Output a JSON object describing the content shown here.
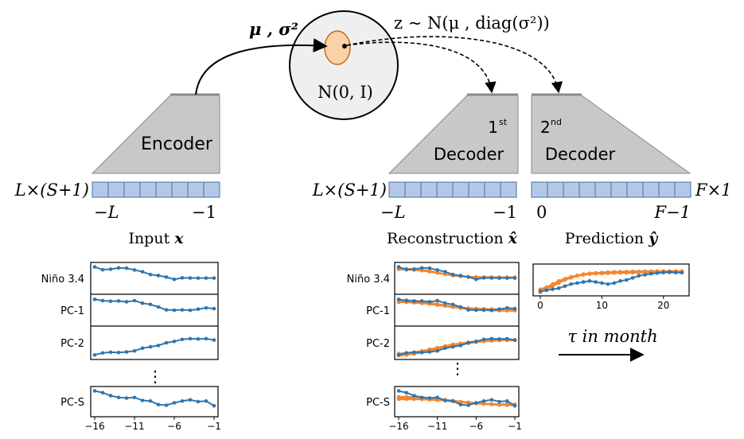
{
  "colors": {
    "blue": "#2e76b0",
    "orange": "#f4862f",
    "box_fill": "#b4c7e7",
    "box_stroke": "#4a6fa5",
    "trapezoid_fill": "#c8c8c8",
    "latent_fill": "#fbd2a8",
    "latent_stroke": "#c46a16"
  },
  "labels": {
    "mu_sigma": "μ , σ²",
    "z_sample": "z ~ N(μ , diag(σ²))",
    "prior": "N(0, I)",
    "encoder": "Encoder",
    "decoder1_sup": "st",
    "decoder1_num": "1",
    "decoder1": "Decoder",
    "decoder2_num": "2",
    "decoder2_sup": "nd",
    "decoder2": "Decoder",
    "input_dim": "L×(S+1)",
    "recon_dim": "L×(S+1)",
    "pred_dim": "F×1",
    "input_left": "−L",
    "input_right": "−1",
    "recon_left": "−L",
    "recon_right": "−1",
    "pred_left": "0",
    "pred_right": "F−1",
    "input_caption": "Input",
    "input_var": "x",
    "recon_caption": "Reconstruction",
    "recon_var": "x̂",
    "pred_caption": "Prediction",
    "pred_var": "ŷ",
    "tau_label": "τ  in month",
    "vdots": "⋮"
  },
  "chart_data": [
    {
      "type": "line",
      "panel": "input",
      "rows": [
        "Niño 3.4",
        "PC-1",
        "PC-2",
        "PC-S"
      ],
      "x": [
        -16,
        -15,
        -14,
        -13,
        -12,
        -11,
        -10,
        -9,
        -8,
        -7,
        -6,
        -5,
        -4,
        -3,
        -2,
        -1
      ],
      "xticks": [
        "−16",
        "−11",
        "−6",
        "−1"
      ],
      "series": [
        {
          "row": "Niño 3.4",
          "values": [
            0.9,
            0.68,
            0.72,
            0.82,
            0.8,
            0.66,
            0.52,
            0.3,
            0.22,
            0.1,
            -0.08,
            0.04,
            0.03,
            0.02,
            0.02,
            0.02
          ]
        },
        {
          "row": "PC-1",
          "values": [
            0.85,
            0.75,
            0.7,
            0.72,
            0.66,
            0.75,
            0.55,
            0.45,
            0.25,
            0.02,
            0.0,
            0.02,
            -0.01,
            0.08,
            0.18,
            0.12
          ]
        },
        {
          "row": "PC-2",
          "values": [
            -0.9,
            -0.75,
            -0.7,
            -0.72,
            -0.68,
            -0.6,
            -0.4,
            -0.3,
            -0.2,
            0.0,
            0.1,
            0.25,
            0.3,
            0.28,
            0.3,
            0.2
          ]
        },
        {
          "row": "PC-S",
          "values": [
            0.9,
            0.75,
            0.5,
            0.35,
            0.3,
            0.35,
            0.1,
            0.05,
            -0.25,
            -0.3,
            -0.1,
            0.05,
            0.15,
            0.0,
            0.05,
            -0.35
          ]
        }
      ]
    },
    {
      "type": "line",
      "panel": "reconstruction",
      "rows": [
        "Niño 3.4",
        "PC-1",
        "PC-2",
        "PC-S"
      ],
      "x": [
        -16,
        -15,
        -14,
        -13,
        -12,
        -11,
        -10,
        -9,
        -8,
        -7,
        -6,
        -5,
        -4,
        -3,
        -2,
        -1
      ],
      "xticks": [
        "−16",
        "−11",
        "−6",
        "−1"
      ],
      "series": [
        {
          "row": "Niño 3.4",
          "kind": "input",
          "values": [
            0.9,
            0.68,
            0.72,
            0.82,
            0.8,
            0.66,
            0.52,
            0.3,
            0.22,
            0.1,
            -0.08,
            0.04,
            0.03,
            0.02,
            0.02,
            0.02
          ]
        },
        {
          "row": "Niño 3.4",
          "kind": "reconstruction",
          "values": [
            0.78,
            0.76,
            0.72,
            0.66,
            0.58,
            0.46,
            0.34,
            0.24,
            0.16,
            0.12,
            0.1,
            0.1,
            0.09,
            0.09,
            0.09,
            0.09
          ]
        },
        {
          "row": "Niño 3.4",
          "kind": "reconstruction",
          "values": [
            0.7,
            0.7,
            0.66,
            0.6,
            0.52,
            0.42,
            0.32,
            0.22,
            0.16,
            0.12,
            0.1,
            0.08,
            0.08,
            0.08,
            0.08,
            0.08
          ]
        },
        {
          "row": "PC-1",
          "kind": "input",
          "values": [
            0.85,
            0.75,
            0.7,
            0.72,
            0.66,
            0.75,
            0.55,
            0.45,
            0.25,
            0.02,
            0.0,
            0.02,
            -0.01,
            0.08,
            0.18,
            0.12
          ]
        },
        {
          "row": "PC-1",
          "kind": "reconstruction",
          "values": [
            0.8,
            0.78,
            0.74,
            0.68,
            0.58,
            0.48,
            0.38,
            0.3,
            0.22,
            0.16,
            0.12,
            0.1,
            0.08,
            0.08,
            0.07,
            0.07
          ]
        },
        {
          "row": "PC-1",
          "kind": "reconstruction",
          "values": [
            0.72,
            0.7,
            0.66,
            0.6,
            0.52,
            0.42,
            0.34,
            0.26,
            0.2,
            0.14,
            0.1,
            0.06,
            0.04,
            0.03,
            0.02,
            0.02
          ]
        },
        {
          "row": "PC-1",
          "kind": "reconstruction",
          "values": [
            0.62,
            0.62,
            0.58,
            0.54,
            0.48,
            0.4,
            0.32,
            0.24,
            0.16,
            0.1,
            0.04,
            0.0,
            -0.02,
            -0.04,
            -0.05,
            -0.05
          ]
        },
        {
          "row": "PC-2",
          "kind": "input",
          "values": [
            -0.9,
            -0.75,
            -0.7,
            -0.72,
            -0.68,
            -0.6,
            -0.4,
            -0.3,
            -0.2,
            0.0,
            0.1,
            0.25,
            0.3,
            0.28,
            0.3,
            0.2
          ]
        },
        {
          "row": "PC-2",
          "kind": "reconstruction",
          "values": [
            -0.95,
            -0.9,
            -0.82,
            -0.72,
            -0.6,
            -0.46,
            -0.34,
            -0.22,
            -0.12,
            -0.04,
            0.04,
            0.1,
            0.14,
            0.17,
            0.18,
            0.18
          ]
        },
        {
          "row": "PC-2",
          "kind": "reconstruction",
          "values": [
            -0.88,
            -0.84,
            -0.76,
            -0.66,
            -0.54,
            -0.4,
            -0.28,
            -0.16,
            -0.06,
            0.02,
            0.08,
            0.12,
            0.16,
            0.18,
            0.2,
            0.2
          ]
        },
        {
          "row": "PC-2",
          "kind": "reconstruction",
          "values": [
            -0.8,
            -0.76,
            -0.7,
            -0.6,
            -0.48,
            -0.36,
            -0.24,
            -0.12,
            -0.04,
            0.04,
            0.1,
            0.14,
            0.18,
            0.2,
            0.22,
            0.22
          ]
        },
        {
          "row": "PC-S",
          "kind": "input",
          "values": [
            0.9,
            0.75,
            0.5,
            0.35,
            0.3,
            0.35,
            0.1,
            0.05,
            -0.25,
            -0.3,
            -0.1,
            0.05,
            0.15,
            0.0,
            0.05,
            -0.35
          ]
        },
        {
          "row": "PC-S",
          "kind": "reconstruction",
          "values": [
            0.4,
            0.4,
            0.38,
            0.34,
            0.3,
            0.24,
            0.16,
            0.08,
            0.0,
            -0.08,
            -0.14,
            -0.18,
            -0.2,
            -0.22,
            -0.22,
            -0.22
          ]
        },
        {
          "row": "PC-S",
          "kind": "reconstruction",
          "values": [
            0.3,
            0.3,
            0.28,
            0.26,
            0.22,
            0.18,
            0.12,
            0.06,
            0.0,
            -0.06,
            -0.12,
            -0.16,
            -0.2,
            -0.24,
            -0.26,
            -0.26
          ]
        },
        {
          "row": "PC-S",
          "kind": "reconstruction",
          "values": [
            0.2,
            0.2,
            0.2,
            0.18,
            0.16,
            0.12,
            0.08,
            0.02,
            -0.04,
            -0.1,
            -0.16,
            -0.2,
            -0.24,
            -0.28,
            -0.3,
            -0.3
          ]
        }
      ]
    },
    {
      "type": "line",
      "panel": "prediction",
      "rows": [
        "Niño 3.4"
      ],
      "x": [
        0,
        1,
        2,
        3,
        4,
        5,
        6,
        7,
        8,
        9,
        10,
        11,
        12,
        13,
        14,
        15,
        16,
        17,
        18,
        19,
        20,
        21,
        22,
        23
      ],
      "xticks": [
        "0",
        "10",
        "20"
      ],
      "series": [
        {
          "kind": "truth",
          "values": [
            -0.55,
            -0.5,
            -0.45,
            -0.4,
            -0.3,
            -0.2,
            -0.15,
            -0.1,
            -0.05,
            -0.1,
            -0.15,
            -0.2,
            -0.15,
            -0.05,
            0.0,
            0.1,
            0.2,
            0.25,
            0.3,
            0.33,
            0.36,
            0.38,
            0.36,
            0.35
          ]
        },
        {
          "kind": "prediction",
          "values": [
            -0.6,
            -0.45,
            -0.3,
            -0.15,
            0.0,
            0.1,
            0.2,
            0.26,
            0.3,
            0.32,
            0.34,
            0.36,
            0.37,
            0.38,
            0.39,
            0.4,
            0.4,
            0.41,
            0.41,
            0.42,
            0.42,
            0.42,
            0.42,
            0.42
          ]
        },
        {
          "kind": "prediction",
          "values": [
            -0.5,
            -0.4,
            -0.25,
            -0.1,
            0.02,
            0.12,
            0.2,
            0.24,
            0.28,
            0.3,
            0.31,
            0.32,
            0.33,
            0.34,
            0.34,
            0.35,
            0.36,
            0.36,
            0.36,
            0.36,
            0.36,
            0.36,
            0.36,
            0.36
          ]
        },
        {
          "kind": "prediction",
          "values": [
            -0.45,
            -0.35,
            -0.2,
            -0.05,
            0.06,
            0.15,
            0.22,
            0.28,
            0.32,
            0.34,
            0.36,
            0.38,
            0.39,
            0.4,
            0.4,
            0.41,
            0.41,
            0.42,
            0.42,
            0.43,
            0.43,
            0.43,
            0.43,
            0.43
          ]
        }
      ]
    }
  ]
}
